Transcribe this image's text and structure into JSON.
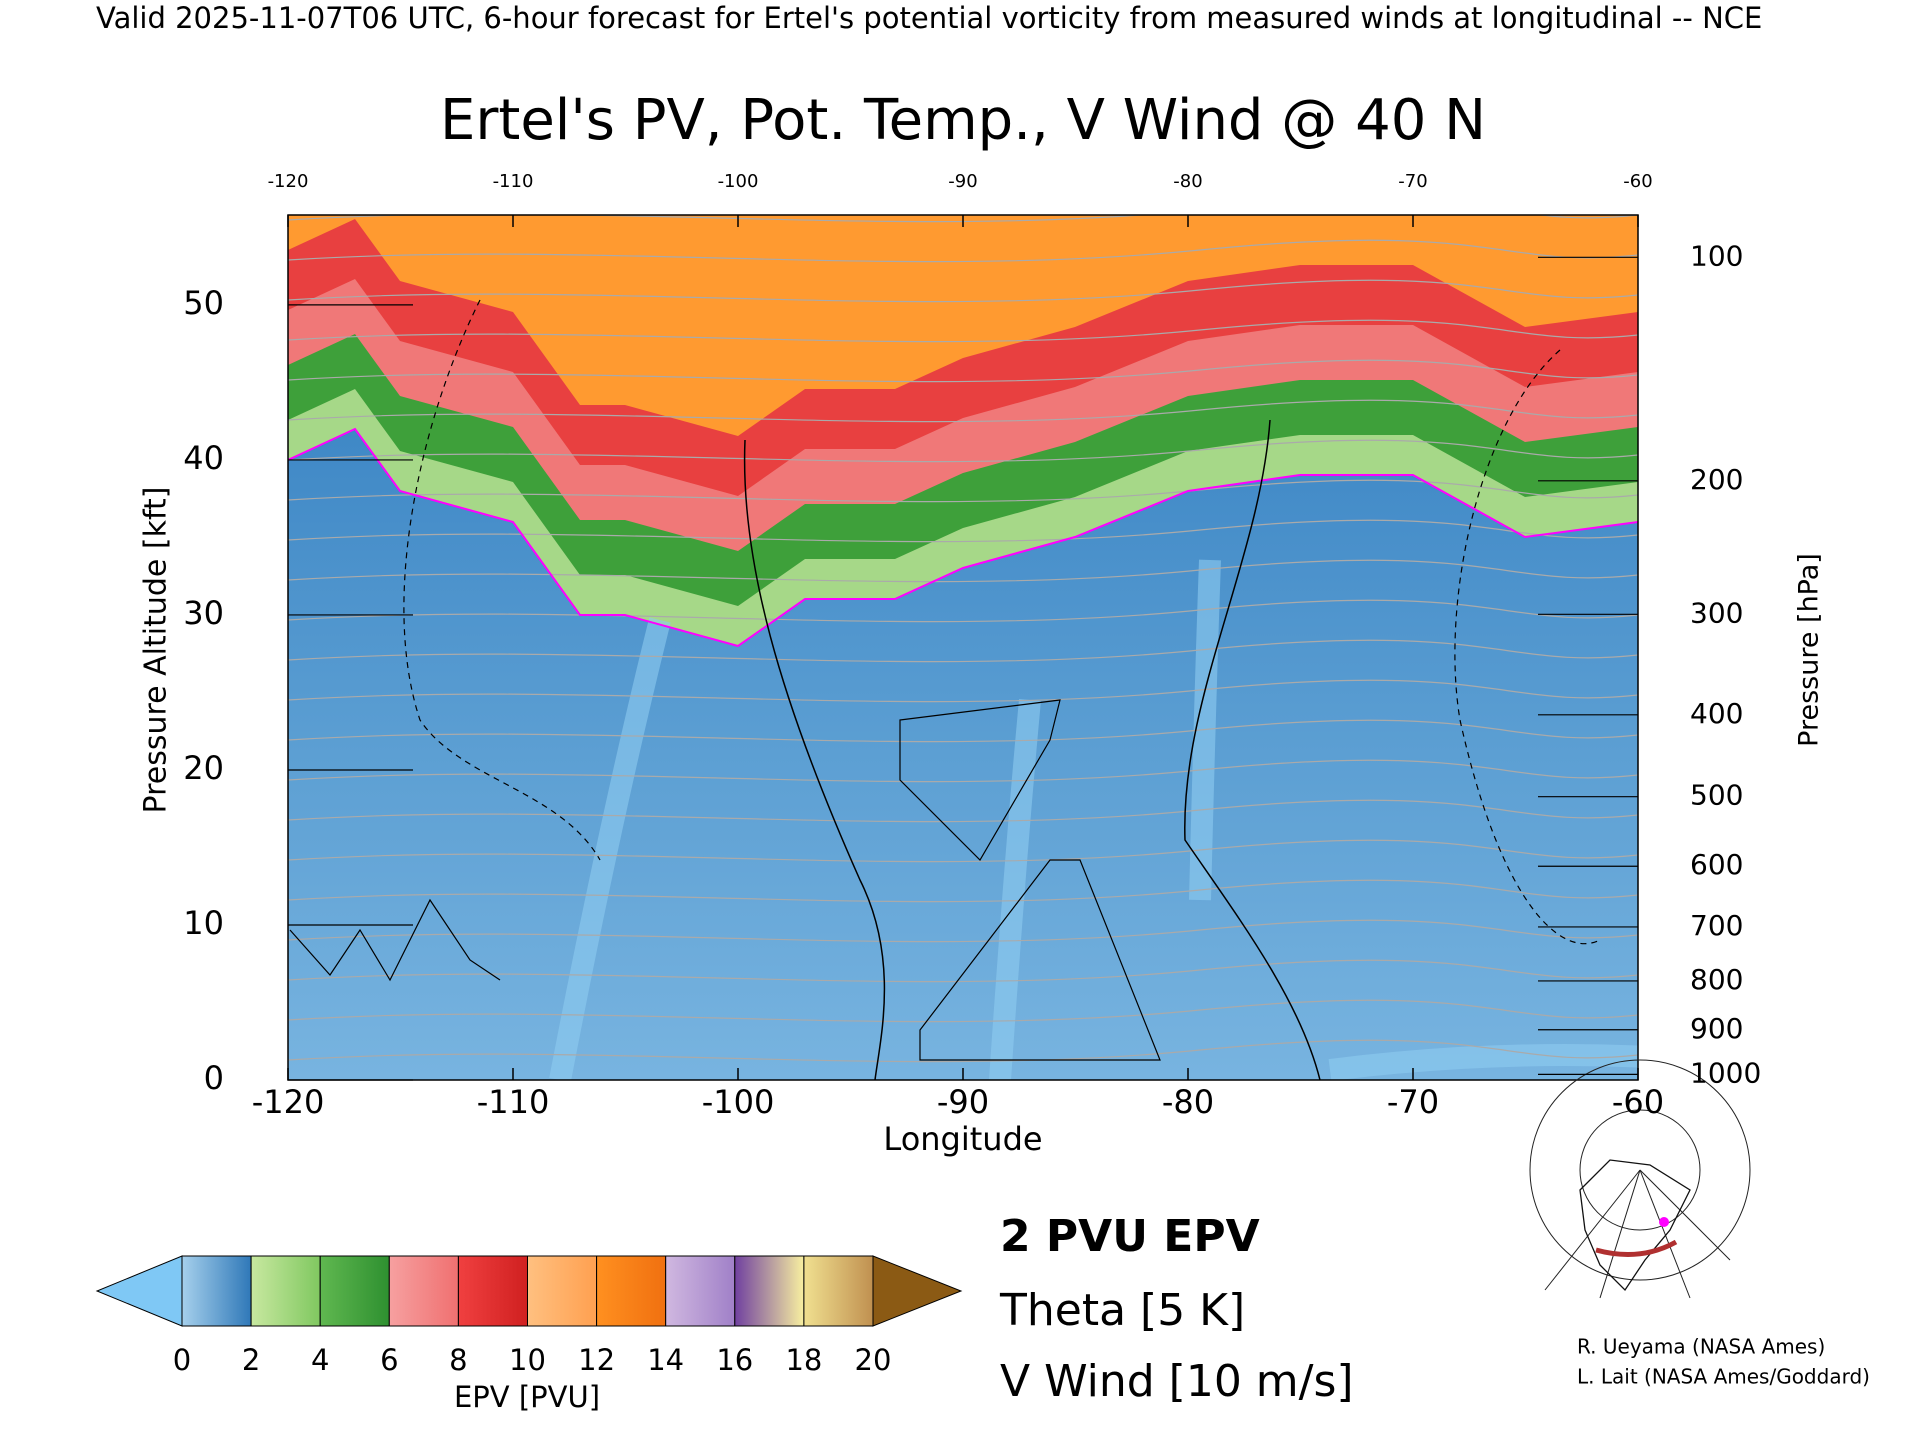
{
  "header": "Valid 2025-11-07T06 UTC, 6-hour forecast for Ertel's potential vorticity from measured winds at longitudinal -- NCE",
  "chart_data": {
    "type": "contour",
    "title": "Ertel's PV, Pot. Temp., V Wind @ 40 N",
    "xlabel": "Longitude",
    "ylabel": "Pressure Altitude [kft]",
    "y2label": "Pressure [hPa]",
    "xlim": [
      -120,
      -60
    ],
    "xticks": [
      -120,
      -110,
      -100,
      -90,
      -80,
      -70,
      -60
    ],
    "ylim": [
      0,
      55.8
    ],
    "yticks": [
      0,
      10,
      20,
      30,
      40,
      50
    ],
    "y2lim": [
      1013.25,
      87.7
    ],
    "y2ticks": [
      100,
      200,
      300,
      400,
      500,
      600,
      700,
      800,
      900,
      1000
    ],
    "y2scale": "pressure-altitude",
    "colorbar": {
      "label": "EPV [PVU]",
      "lim": [
        0,
        20
      ],
      "ticks": [
        0,
        2,
        4,
        6,
        8,
        10,
        12,
        14,
        16,
        18,
        20
      ],
      "colors": [
        [
          "#a6d0ec",
          "#2f78b8"
        ],
        [
          "#c8e8a0",
          "#80c860"
        ],
        [
          "#60b850",
          "#2e9030"
        ],
        [
          "#f6a0a0",
          "#f07070"
        ],
        [
          "#f04040",
          "#d02020"
        ],
        [
          "#ffc080",
          "#ffa050"
        ],
        [
          "#ff9020",
          "#f07010"
        ],
        [
          "#d0b8e0",
          "#a080c8"
        ],
        [
          "#7040a0",
          "#f8f0a0"
        ],
        [
          "#f0e090",
          "#c09050"
        ]
      ],
      "under_color": "#7fc8f5",
      "over_color": "#8b5a14"
    },
    "legend": [
      {
        "name": "2 PVU EPV",
        "color": "#ff00ff"
      },
      {
        "name": "Theta [5 K]",
        "color": "#aaaaaa"
      },
      {
        "name": "V Wind [10 m/s]",
        "color": "#000000"
      }
    ]
  },
  "credits": [
    "R. Ueyama (NASA Ames)",
    "L. Lait (NASA Ames/Goddard)"
  ]
}
